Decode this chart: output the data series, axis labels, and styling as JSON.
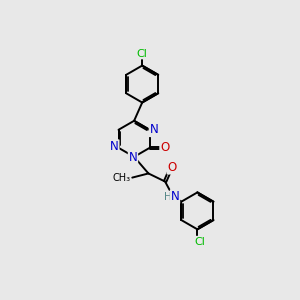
{
  "bg_color": "#e8e8e8",
  "bond_color": "#000000",
  "bond_width": 1.4,
  "atom_colors": {
    "N": "#0000cc",
    "O": "#cc0000",
    "Cl": "#00bb00",
    "H": "#558888",
    "C": "#000000"
  },
  "font_size_atom": 8.5,
  "font_size_cl": 8.0,
  "font_size_h": 7.5
}
